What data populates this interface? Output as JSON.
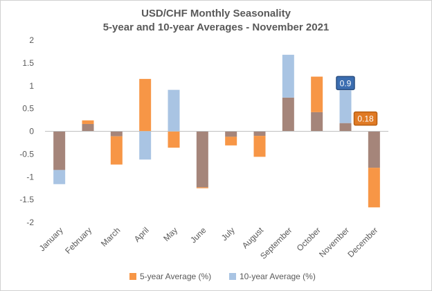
{
  "chart_data": {
    "type": "bar",
    "title": "USD/CHF Monthly Seasonality",
    "subtitle": "5-year and 10-year Averages - November 2021",
    "categories": [
      "January",
      "February",
      "March",
      "April",
      "May",
      "June",
      "July",
      "August",
      "September",
      "October",
      "November",
      "December"
    ],
    "series": [
      {
        "name": "5-year Average (%)",
        "color": "#F79646",
        "values": [
          -0.85,
          0.24,
          -0.73,
          1.15,
          -0.36,
          -1.25,
          -0.31,
          -0.56,
          0.74,
          1.2,
          0.18,
          -1.67
        ]
      },
      {
        "name": "10-year Average (%)",
        "color": "#A9C4E3",
        "values": [
          -1.16,
          0.16,
          -0.11,
          -0.62,
          0.91,
          -1.23,
          -0.12,
          -0.1,
          1.68,
          0.42,
          0.9,
          -0.8
        ]
      }
    ],
    "overlap_color": "#A5857A",
    "ylim": [
      -2,
      2
    ],
    "yticks": [
      "-2",
      "-1.5",
      "-1",
      "-0.5",
      "0",
      "0.5",
      "1",
      "1.5",
      "2"
    ],
    "xlabel": "",
    "ylabel": "",
    "grid": false,
    "legend_position": "bottom",
    "annotations": [
      {
        "text": "0.9",
        "category": "November",
        "series": "10-year Average (%)",
        "fill": "#3B6DB0",
        "border": "#2A4E80"
      },
      {
        "text": "0.18",
        "category": "November",
        "series": "5-year Average (%)",
        "fill": "#E07A24",
        "border": "#B85E10"
      }
    ]
  }
}
